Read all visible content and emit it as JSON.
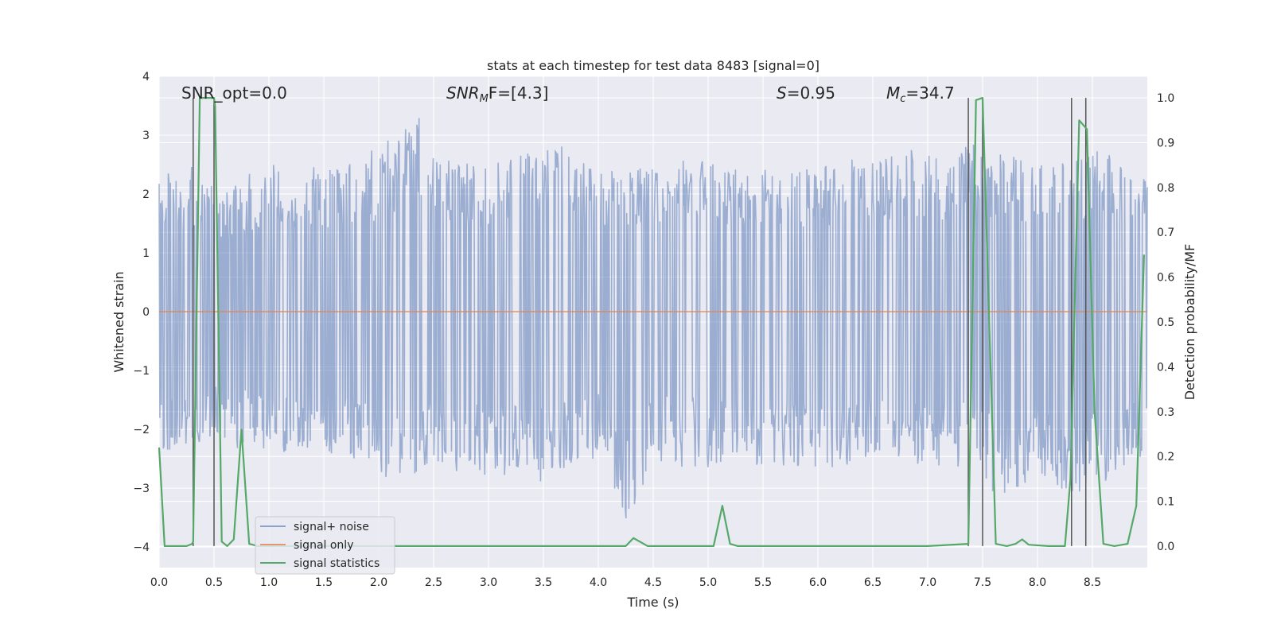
{
  "chart_data": {
    "type": "line",
    "title": "stats at each timestep for test data 8483 [signal=0]",
    "xlabel": "Time (s)",
    "ylabel_left": "Whitened strain",
    "ylabel_right": "Detection probability/MF",
    "xlim": [
      0.0,
      9.0
    ],
    "ylim_left": [
      -4.35,
      4.0
    ],
    "ylim_right": [
      -0.048,
      1.048
    ],
    "x_ticks": [
      "0.0",
      "0.5",
      "1.0",
      "1.5",
      "2.0",
      "2.5",
      "3.0",
      "3.5",
      "4.0",
      "4.5",
      "5.0",
      "5.5",
      "6.0",
      "6.5",
      "7.0",
      "7.5",
      "8.0",
      "8.5"
    ],
    "y_ticks_left": [
      "−4",
      "−3",
      "−2",
      "−1",
      "0",
      "1",
      "2",
      "3",
      "4"
    ],
    "y_ticks_right": [
      "0.0",
      "0.1",
      "0.2",
      "0.3",
      "0.4",
      "0.5",
      "0.6",
      "0.7",
      "0.8",
      "0.9",
      "1.0"
    ],
    "annotations": {
      "snr_opt": "SNR_opt=0.0",
      "snr_mf_italic": "SNR",
      "snr_mf_sub": "M",
      "snr_mf_rest": "F=[4.3]",
      "s_italic": "S",
      "s_rest": "=0.95",
      "mc_italic": "M",
      "mc_sub": "c",
      "mc_rest": "=34.7"
    },
    "legend": {
      "location": "lower-left",
      "entries": [
        "signal+ noise",
        "signal only",
        "signal statistics"
      ]
    },
    "colors": {
      "noise": "#4c72b0",
      "signal": "#dd8452",
      "stats": "#55a868",
      "vlines": "#555555",
      "background": "#eaeaf2",
      "grid": "#ffffff"
    },
    "noise_envelope": {
      "upper": [
        [
          0.0,
          2.5
        ],
        [
          0.3,
          2.5
        ],
        [
          0.5,
          2.1
        ],
        [
          1.0,
          2.5
        ],
        [
          1.5,
          2.5
        ],
        [
          2.0,
          2.8
        ],
        [
          2.4,
          3.6
        ],
        [
          2.6,
          2.7
        ],
        [
          3.0,
          2.6
        ],
        [
          3.5,
          3.0
        ],
        [
          4.0,
          2.6
        ],
        [
          4.5,
          2.5
        ],
        [
          5.0,
          2.7
        ],
        [
          5.5,
          2.6
        ],
        [
          6.0,
          2.6
        ],
        [
          6.5,
          2.8
        ],
        [
          7.0,
          2.8
        ],
        [
          7.5,
          2.9
        ],
        [
          8.0,
          2.7
        ],
        [
          8.5,
          2.8
        ],
        [
          9.0,
          2.6
        ]
      ],
      "lower": [
        [
          0.0,
          -2.5
        ],
        [
          0.3,
          -2.5
        ],
        [
          0.5,
          -2.2
        ],
        [
          1.0,
          -2.5
        ],
        [
          1.5,
          -2.5
        ],
        [
          2.0,
          -2.7
        ],
        [
          2.15,
          -3.1
        ],
        [
          2.5,
          -2.7
        ],
        [
          3.0,
          -2.9
        ],
        [
          3.5,
          -2.9
        ],
        [
          4.0,
          -2.5
        ],
        [
          4.25,
          -3.8
        ],
        [
          4.5,
          -2.6
        ],
        [
          5.0,
          -2.7
        ],
        [
          5.5,
          -2.8
        ],
        [
          6.0,
          -2.8
        ],
        [
          6.5,
          -2.6
        ],
        [
          7.0,
          -2.6
        ],
        [
          7.5,
          -2.9
        ],
        [
          7.75,
          -3.4
        ],
        [
          8.0,
          -2.8
        ],
        [
          8.2,
          -3.3
        ],
        [
          8.5,
          -3.1
        ],
        [
          9.0,
          -2.5
        ]
      ]
    },
    "signal_only": [
      [
        0.0,
        0.0
      ],
      [
        9.0,
        0.0
      ]
    ],
    "signal_statistics": [
      [
        0.0,
        0.22
      ],
      [
        0.05,
        0.0
      ],
      [
        0.1,
        -0.0
      ],
      [
        0.2,
        0.0
      ],
      [
        0.25,
        0.0
      ],
      [
        0.3,
        0.005
      ],
      [
        0.31,
        0.01
      ],
      [
        0.37,
        1.0
      ],
      [
        0.42,
        1.0
      ],
      [
        0.5,
        1.0
      ],
      [
        0.51,
        0.98
      ],
      [
        0.57,
        0.01
      ],
      [
        0.62,
        0.0
      ],
      [
        0.68,
        0.015
      ],
      [
        0.75,
        0.26
      ],
      [
        0.82,
        0.005
      ],
      [
        0.9,
        0.0
      ],
      [
        1.5,
        0.0
      ],
      [
        2.0,
        0.0
      ],
      [
        3.0,
        0.0
      ],
      [
        4.0,
        0.0
      ],
      [
        4.25,
        0.0
      ],
      [
        4.32,
        0.018
      ],
      [
        4.45,
        0.0
      ],
      [
        4.8,
        0.0
      ],
      [
        5.05,
        0.0
      ],
      [
        5.13,
        0.09
      ],
      [
        5.2,
        0.005
      ],
      [
        5.27,
        0.0
      ],
      [
        6.0,
        0.0
      ],
      [
        7.0,
        0.0
      ],
      [
        7.37,
        0.005
      ],
      [
        7.44,
        0.995
      ],
      [
        7.5,
        1.0
      ],
      [
        7.62,
        0.005
      ],
      [
        7.72,
        0.0
      ],
      [
        7.8,
        0.005
      ],
      [
        7.86,
        0.015
      ],
      [
        7.92,
        0.003
      ],
      [
        8.1,
        0.0
      ],
      [
        8.25,
        0.0
      ],
      [
        8.3,
        0.15
      ],
      [
        8.38,
        0.95
      ],
      [
        8.45,
        0.93
      ],
      [
        8.52,
        0.3
      ],
      [
        8.6,
        0.005
      ],
      [
        8.7,
        0.0
      ],
      [
        8.82,
        0.005
      ],
      [
        8.9,
        0.09
      ],
      [
        8.97,
        0.65
      ]
    ],
    "vertical_lines_x": [
      0.31,
      0.5,
      7.37,
      7.5,
      8.31,
      8.44
    ],
    "vertical_lines_prob_range": [
      0.0,
      1.0
    ]
  }
}
